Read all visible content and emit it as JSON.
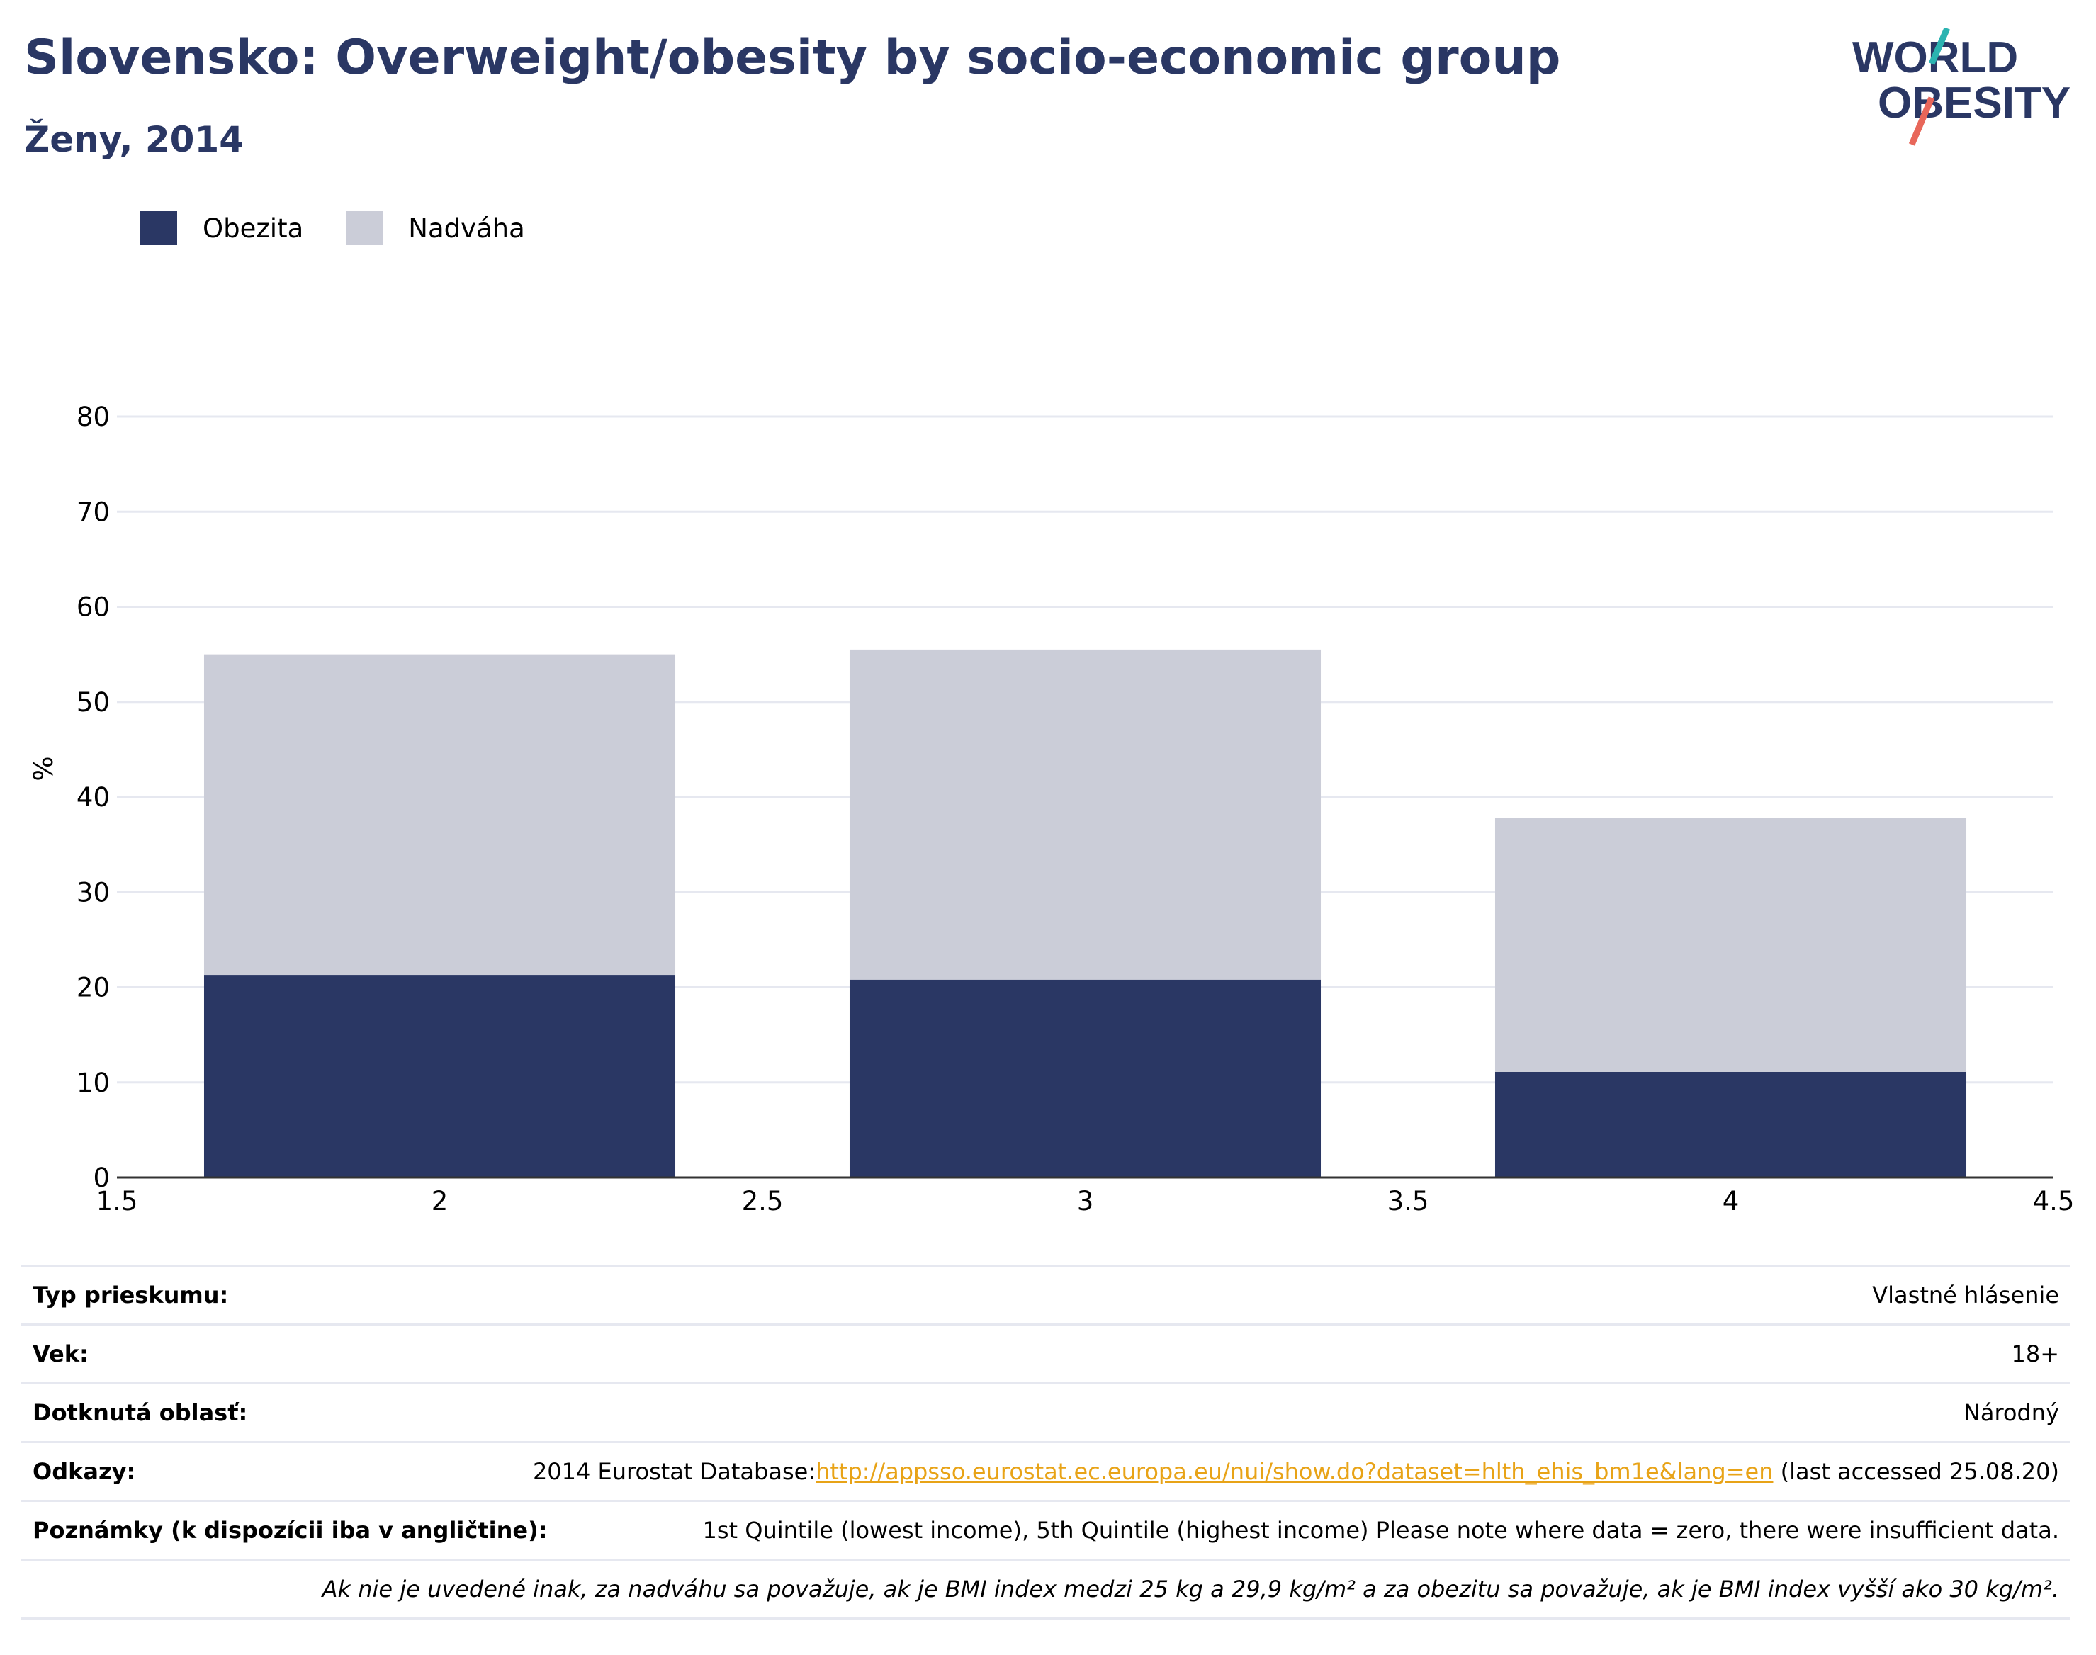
{
  "title": "Slovensko: Overweight/obesity by socio-economic group",
  "subtitle": "Ženy, 2014",
  "logo": {
    "line1": "WORLD",
    "line2": "OBESITY"
  },
  "colors": {
    "obesity": "#2a3764",
    "overweight": "#cbcdd8",
    "title": "#2a3764",
    "link": "#e8a317",
    "logo_teal": "#2bb3b1",
    "logo_coral": "#e8675a"
  },
  "legend": [
    {
      "label": "Obezita",
      "color": "#2a3764"
    },
    {
      "label": "Nadváha",
      "color": "#cbcdd8"
    }
  ],
  "chart_data": {
    "type": "bar",
    "stacked": true,
    "x": [
      2,
      3,
      4
    ],
    "series": [
      {
        "name": "Obezita",
        "values": [
          21.3,
          20.8,
          11.1
        ]
      },
      {
        "name": "Nadváha",
        "values": [
          33.7,
          34.7,
          26.7
        ]
      }
    ],
    "totals": [
      55.0,
      55.5,
      37.8
    ],
    "xlim": [
      1.5,
      4.5
    ],
    "ylim": [
      0,
      80
    ],
    "x_ticks": [
      "1.5",
      "2",
      "2.5",
      "3",
      "3.5",
      "4",
      "4.5"
    ],
    "y_ticks": [
      "0",
      "10",
      "20",
      "30",
      "40",
      "50",
      "60",
      "70",
      "80"
    ],
    "ylabel": "%",
    "xlabel": "",
    "grid": true,
    "legend_position": "top-left"
  },
  "info": {
    "survey_type_label": "Typ prieskumu:",
    "survey_type_value": "Vlastné hlásenie",
    "age_label": "Vek:",
    "age_value": "18+",
    "area_label": "Dotknutá oblasť:",
    "area_value": "Národný",
    "refs_label": "Odkazy:",
    "refs_prefix": "2014 Eurostat Database:",
    "refs_link": "http://appsso.eurostat.ec.europa.eu/nui/show.do?dataset=hlth_ehis_bm1e&lang=en",
    "refs_suffix": " (last accessed 25.08.20)",
    "notes_label": "Poznámky (k dispozícii iba v angličtine):",
    "notes_value": "1st Quintile (lowest income), 5th Quintile (highest income) Please note where data = zero, there were insufficient data.",
    "footnote": "Ak nie je uvedené inak, za nadváhu sa považuje, ak je BMI index medzi 25 kg a 29,9 kg/m² a za obezitu sa považuje, ak je BMI index vyšší ako 30 kg/m²."
  }
}
